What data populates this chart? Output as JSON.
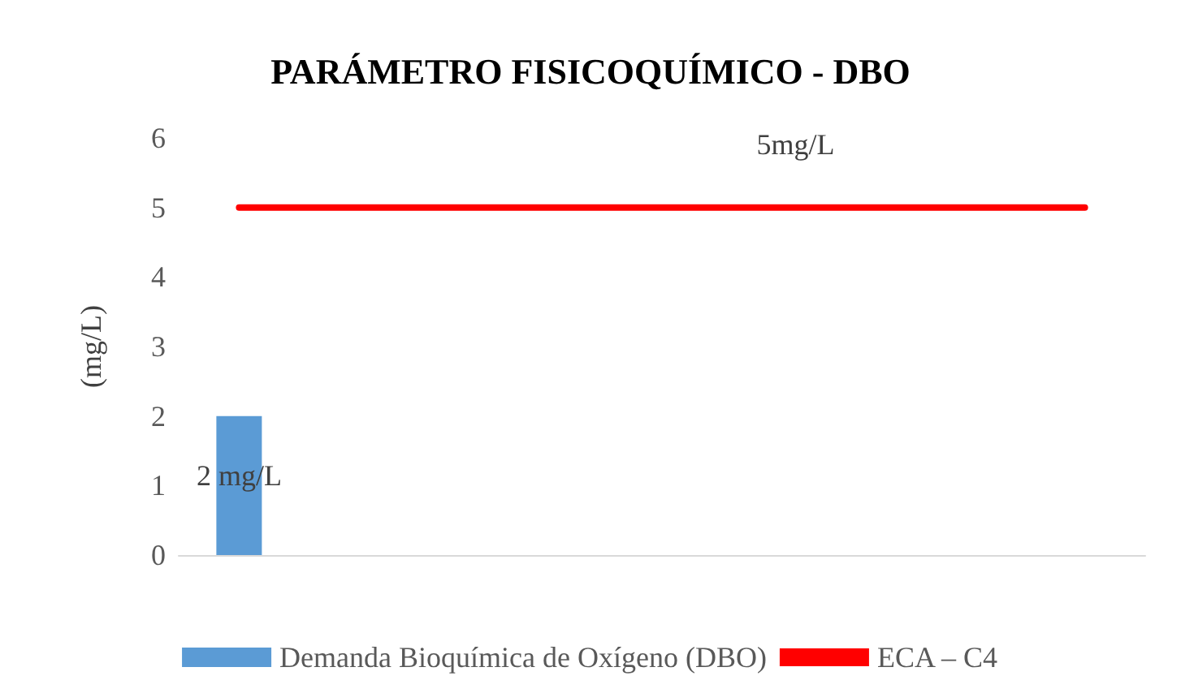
{
  "chart_data": {
    "type": "bar",
    "title": "PARÁMETRO FISICOQUÍMICO - DBO",
    "ylabel": "(mg/L)",
    "categories": [
      null,
      null,
      null,
      null,
      null,
      null,
      null,
      null
    ],
    "series": [
      {
        "name": "Demanda Bioquímica de Oxígeno (DBO)",
        "color": "#5b9bd5",
        "values": [
          2,
          null,
          null,
          null,
          null,
          null,
          null,
          null
        ],
        "value_labels": [
          "2 mg/L",
          null,
          null,
          null,
          null,
          null,
          null,
          null
        ]
      },
      {
        "name": "ECA – C4",
        "type": "line",
        "color": "#ff0000",
        "marker": "none",
        "values": [
          5,
          5,
          5,
          5,
          5,
          5,
          5,
          5
        ],
        "value_labels": [
          null,
          null,
          null,
          null,
          "5mg/L",
          null,
          null,
          null
        ]
      }
    ],
    "ylim": [
      0,
      6
    ],
    "yticks": [
      0,
      1,
      2,
      3,
      4,
      5,
      6
    ],
    "grid": false,
    "legend": "bottom"
  }
}
